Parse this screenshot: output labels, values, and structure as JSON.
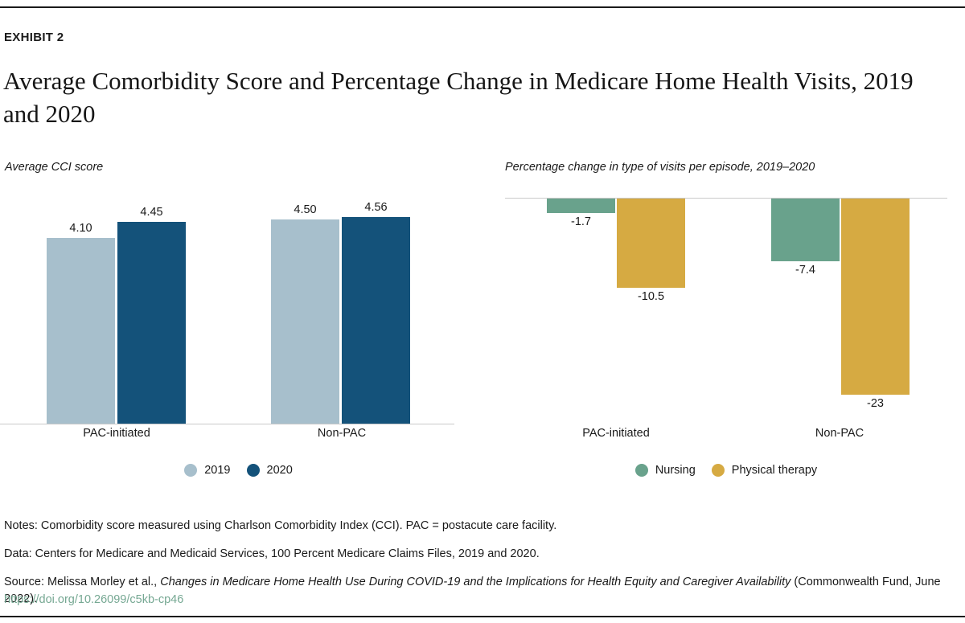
{
  "page": {
    "exhibit_label": "EXHIBIT 2",
    "title": "Average Comorbidity Score and Percentage Change in Medicare Home Health Visits, 2019 and 2020"
  },
  "colors": {
    "rule": "#1a1a1a",
    "axis_line": "#c9c9c9",
    "link": "#76a893",
    "series_2019": "#a7bfcc",
    "series_2020": "#14527a",
    "series_nursing": "#69a28c",
    "series_physical_therapy": "#d6aa42"
  },
  "chart_data": [
    {
      "type": "bar",
      "title": "Average CCI score",
      "categories": [
        "PAC-initiated",
        "Non-PAC"
      ],
      "series": [
        {
          "name": "2019",
          "color": "#a7bfcc",
          "values": [
            4.1,
            4.5
          ],
          "labels": [
            "4.10",
            "4.50"
          ]
        },
        {
          "name": "2020",
          "color": "#14527a",
          "values": [
            4.45,
            4.56
          ],
          "labels": [
            "4.45",
            "4.56"
          ]
        }
      ],
      "ylabel": "Average CCI score",
      "xlabel": "",
      "ylim": [
        0,
        5.3
      ],
      "grid": false,
      "value_labels_position": "above",
      "legend_position": "bottom"
    },
    {
      "type": "bar",
      "title": "Percentage change in type of visits per episode, 2019–2020",
      "categories": [
        "PAC-initiated",
        "Non-PAC"
      ],
      "series": [
        {
          "name": "Nursing",
          "color": "#69a28c",
          "values": [
            -1.7,
            -7.4
          ],
          "labels": [
            "-1.7",
            "-7.4"
          ]
        },
        {
          "name": "Physical therapy",
          "color": "#d6aa42",
          "values": [
            -10.5,
            -23
          ],
          "labels": [
            "-10.5",
            "-23"
          ]
        }
      ],
      "ylabel": "Percentage change in type of visits per episode, 2019–2020",
      "xlabel": "",
      "ylim": [
        -26,
        0
      ],
      "grid": false,
      "value_labels_position": "below",
      "legend_position": "bottom"
    }
  ],
  "footer": {
    "notes": "Notes: Comorbidity score measured using Charlson Comorbidity Index (CCI). PAC = postacute care facility.",
    "data_line": "Data: Centers for Medicare and Medicaid Services, 100 Percent Medicare Claims Files, 2019 and 2020.",
    "source_prefix": "Source: Melissa Morley et al., ",
    "source_italic": "Changes in Medicare Home Health Use During COVID-19 and the Implications for Health Equity and Caregiver Availability",
    "source_suffix": " (Commonwealth Fund, June 2022).",
    "link": "https://doi.org/10.26099/c5kb-cp46"
  }
}
